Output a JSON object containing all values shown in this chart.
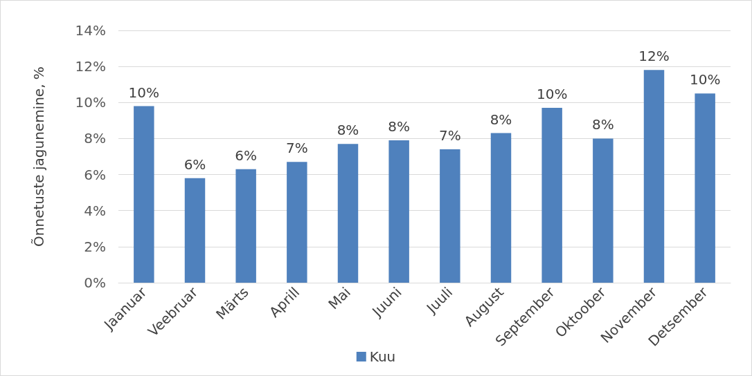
{
  "chart_data": {
    "type": "bar",
    "ylabel": "Õnnetuste jagunemine, %",
    "categories": [
      "Jaanuar",
      "Veebruar",
      "Märts",
      "Aprill",
      "Mai",
      "Juuni",
      "Juuli",
      "August",
      "September",
      "Oktoober",
      "November",
      "Detsember"
    ],
    "series": [
      {
        "name": "Kuu",
        "color": "#4f81bd",
        "values": [
          9.8,
          5.8,
          6.3,
          6.7,
          7.7,
          7.9,
          7.4,
          8.3,
          9.7,
          8.0,
          11.8,
          10.5
        ],
        "value_labels": [
          "10%",
          "6%",
          "6%",
          "7%",
          "8%",
          "8%",
          "7%",
          "8%",
          "10%",
          "8%",
          "12%",
          "10%"
        ]
      }
    ],
    "ylim": [
      0,
      14
    ],
    "yticks": [
      {
        "value": 0,
        "label": "0%"
      },
      {
        "value": 2,
        "label": "2%"
      },
      {
        "value": 4,
        "label": "4%"
      },
      {
        "value": 6,
        "label": "6%"
      },
      {
        "value": 8,
        "label": "8%"
      },
      {
        "value": 10,
        "label": "10%"
      },
      {
        "value": 12,
        "label": "12%"
      },
      {
        "value": 14,
        "label": "14%"
      }
    ],
    "grid": "y",
    "legend": "bottom"
  }
}
